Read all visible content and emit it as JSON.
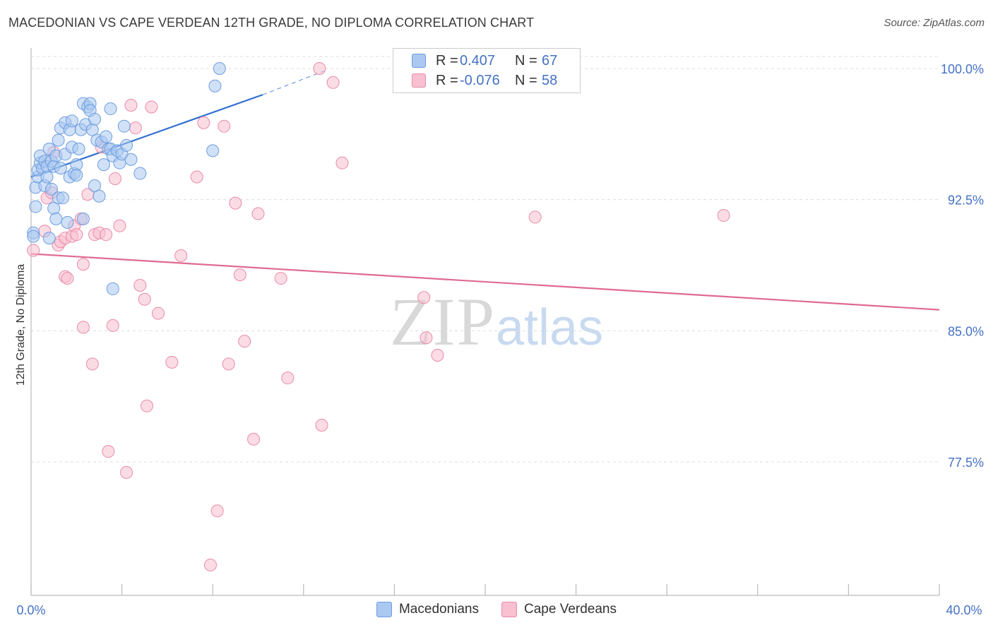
{
  "title": "MACEDONIAN VS CAPE VERDEAN 12TH GRADE, NO DIPLOMA CORRELATION CHART",
  "source": "Source: ZipAtlas.com",
  "watermark": {
    "zip": "ZIP",
    "atlas": "atlas"
  },
  "legend": {
    "macedonians": {
      "r_label": "R =",
      "r_value": "0.407",
      "n_label": "N =",
      "n_value": "67"
    },
    "cape_verdeans": {
      "r_label": "R =",
      "r_value": "-0.076",
      "n_label": "N =",
      "n_value": "58"
    }
  },
  "bottom_legend": {
    "macedonians": "Macedonians",
    "cape_verdeans": "Cape Verdeans"
  },
  "colors": {
    "blue_fill": "#aac8f0",
    "blue_stroke": "#6d9de0",
    "blue_line": "#2f6fd0",
    "pink_fill": "#f8c0d0",
    "pink_stroke": "#ea8aa8",
    "pink_line": "#e06a92",
    "grid": "#dddddd",
    "tick_text": "#4472c4"
  },
  "chart_data": {
    "type": "scatter",
    "title": "MACEDONIAN VS CAPE VERDEAN 12TH GRADE, NO DIPLOMA CORRELATION CHART",
    "xlabel": "",
    "ylabel": "12th Grade, No Diploma",
    "xlim": [
      0,
      40
    ],
    "ylim": [
      70.5,
      101.5
    ],
    "x_tick_labels": [
      "0.0%",
      "40.0%"
    ],
    "y_ticks": [
      77.5,
      85.0,
      92.5,
      100.0
    ],
    "y_tick_labels": [
      "77.5%",
      "85.0%",
      "92.5%",
      "100.0%"
    ],
    "series": [
      {
        "name": "Macedonians",
        "r": 0.407,
        "n": 67,
        "trend": {
          "x": [
            0.0,
            10.2
          ],
          "y": [
            93.8,
            98.5
          ],
          "dashed_to": {
            "x": 13.0,
            "y": 99.9
          }
        },
        "points": [
          [
            0.1,
            90.6
          ],
          [
            0.2,
            92.1
          ],
          [
            0.2,
            93.2
          ],
          [
            0.3,
            93.8
          ],
          [
            0.3,
            94.2
          ],
          [
            0.4,
            94.6
          ],
          [
            0.4,
            95.0
          ],
          [
            0.5,
            94.3
          ],
          [
            0.6,
            94.7
          ],
          [
            0.6,
            93.3
          ],
          [
            0.7,
            93.8
          ],
          [
            0.7,
            94.4
          ],
          [
            0.8,
            95.4
          ],
          [
            0.8,
            90.3
          ],
          [
            0.9,
            93.1
          ],
          [
            0.9,
            94.7
          ],
          [
            1.0,
            94.4
          ],
          [
            1.0,
            92.0
          ],
          [
            1.1,
            95.0
          ],
          [
            1.1,
            91.4
          ],
          [
            1.2,
            92.6
          ],
          [
            1.2,
            95.9
          ],
          [
            1.3,
            94.3
          ],
          [
            1.3,
            96.6
          ],
          [
            1.4,
            92.6
          ],
          [
            1.5,
            96.9
          ],
          [
            1.5,
            95.1
          ],
          [
            1.6,
            91.2
          ],
          [
            1.7,
            96.5
          ],
          [
            1.7,
            93.8
          ],
          [
            1.8,
            95.5
          ],
          [
            1.8,
            97.0
          ],
          [
            1.9,
            94.0
          ],
          [
            2.0,
            94.5
          ],
          [
            2.0,
            93.9
          ],
          [
            2.1,
            95.4
          ],
          [
            2.2,
            96.5
          ],
          [
            2.3,
            91.4
          ],
          [
            2.3,
            98.0
          ],
          [
            2.4,
            96.8
          ],
          [
            2.5,
            97.8
          ],
          [
            2.6,
            98.0
          ],
          [
            2.6,
            97.6
          ],
          [
            2.7,
            96.5
          ],
          [
            2.8,
            93.3
          ],
          [
            2.8,
            97.1
          ],
          [
            2.9,
            95.9
          ],
          [
            3.0,
            92.7
          ],
          [
            3.1,
            95.8
          ],
          [
            3.2,
            94.5
          ],
          [
            3.3,
            96.1
          ],
          [
            3.4,
            95.4
          ],
          [
            3.5,
            97.7
          ],
          [
            3.5,
            95.4
          ],
          [
            3.6,
            87.4
          ],
          [
            3.6,
            95.0
          ],
          [
            3.8,
            95.3
          ],
          [
            3.9,
            94.6
          ],
          [
            4.0,
            95.1
          ],
          [
            4.1,
            96.7
          ],
          [
            4.2,
            95.6
          ],
          [
            4.4,
            94.8
          ],
          [
            4.8,
            94.0
          ],
          [
            8.0,
            95.3
          ],
          [
            8.1,
            99.0
          ],
          [
            8.3,
            100.0
          ],
          [
            0.1,
            90.4
          ]
        ]
      },
      {
        "name": "Cape Verdeans",
        "r": -0.076,
        "n": 58,
        "trend": {
          "x": [
            0.0,
            40.0
          ],
          "y": [
            89.4,
            86.2
          ]
        },
        "points": [
          [
            0.1,
            89.6
          ],
          [
            0.6,
            90.7
          ],
          [
            0.7,
            92.6
          ],
          [
            0.9,
            92.9
          ],
          [
            1.0,
            95.2
          ],
          [
            1.2,
            89.9
          ],
          [
            1.3,
            90.1
          ],
          [
            1.5,
            90.3
          ],
          [
            1.5,
            88.1
          ],
          [
            1.6,
            88.0
          ],
          [
            1.8,
            90.4
          ],
          [
            1.9,
            91.0
          ],
          [
            2.0,
            90.5
          ],
          [
            2.2,
            91.4
          ],
          [
            2.3,
            88.8
          ],
          [
            2.3,
            85.2
          ],
          [
            2.5,
            92.8
          ],
          [
            2.7,
            83.1
          ],
          [
            2.8,
            90.5
          ],
          [
            3.0,
            90.6
          ],
          [
            3.1,
            95.5
          ],
          [
            3.3,
            90.5
          ],
          [
            3.4,
            78.1
          ],
          [
            3.6,
            85.3
          ],
          [
            3.7,
            93.7
          ],
          [
            3.9,
            91.0
          ],
          [
            4.2,
            76.9
          ],
          [
            4.4,
            97.9
          ],
          [
            4.6,
            96.6
          ],
          [
            4.8,
            87.6
          ],
          [
            5.0,
            86.8
          ],
          [
            5.1,
            80.7
          ],
          [
            5.3,
            97.8
          ],
          [
            5.6,
            86.0
          ],
          [
            6.2,
            83.2
          ],
          [
            6.6,
            89.3
          ],
          [
            7.3,
            93.8
          ],
          [
            7.6,
            96.9
          ],
          [
            7.9,
            71.6
          ],
          [
            8.2,
            74.7
          ],
          [
            8.5,
            96.7
          ],
          [
            8.7,
            83.1
          ],
          [
            9.0,
            92.3
          ],
          [
            9.2,
            88.2
          ],
          [
            9.4,
            84.4
          ],
          [
            9.8,
            78.8
          ],
          [
            10.0,
            91.7
          ],
          [
            11.0,
            88.0
          ],
          [
            11.3,
            82.3
          ],
          [
            12.8,
            79.6
          ],
          [
            12.7,
            100.0
          ],
          [
            13.3,
            99.2
          ],
          [
            13.7,
            94.6
          ],
          [
            17.3,
            86.9
          ],
          [
            17.4,
            84.6
          ],
          [
            17.9,
            83.6
          ],
          [
            22.2,
            91.5
          ],
          [
            30.5,
            91.6
          ]
        ]
      }
    ]
  }
}
